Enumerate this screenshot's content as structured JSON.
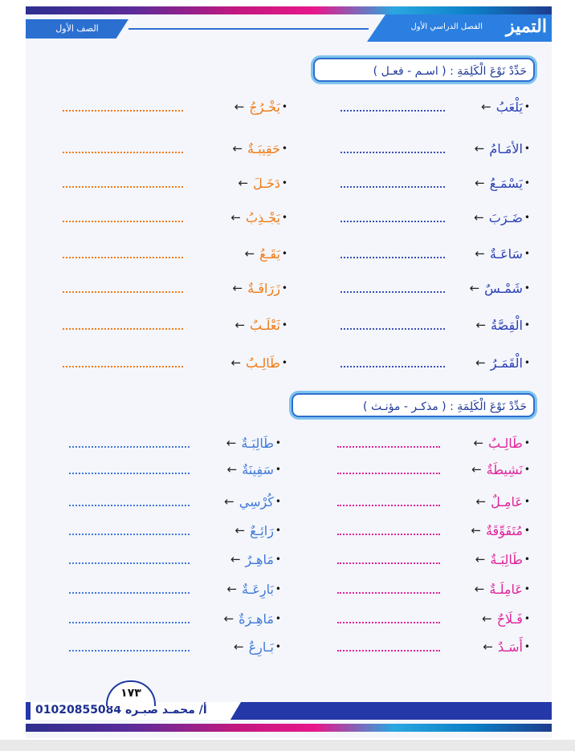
{
  "header": {
    "grade": "الصف الأول",
    "semester": "الفصل الدراسي الأول",
    "logo": "التميز"
  },
  "section1": {
    "title": "حَدِّدْ نَوْعَ الْكَلِمَةِ : ( اسـم - فعـل )",
    "right_words": [
      "يَلْعَبُ",
      "الأمَـامُ",
      "يَسْمَـعُ",
      "ضَـرَبَ",
      "سَاعَـةٌ",
      "شَمْـسٌ",
      "الْقِصَّةُ",
      "الْقَمَـرُ"
    ],
    "left_words": [
      "يَخْـرُجُ",
      "حَقِيبَـةٌ",
      "دَخَـلَ",
      "يَجْـذِبُ",
      "يَقَـعُ",
      "زَرَافَـةٌ",
      "ثَعْلَـبٌ",
      "طَالِـبٌ"
    ],
    "right_color": "#2a3fb5",
    "left_color": "#f07a14",
    "dots_color": "#f07a14"
  },
  "section2": {
    "title": "حَدِّدْ نَوْعَ الْكَلِمَةِ : ( مذكـر - مؤنـث )",
    "right_words": [
      "طَالِـبٌ",
      "نَشِيطَةٌ",
      "عَامِـلٌ",
      "مُتَفَوِّقَةٌ",
      "طَالِبَـةٌ",
      "عَامِلَـةٌ",
      "فَـلَاحٌ",
      "أَسَـدٌ"
    ],
    "left_words": [
      "طَالِبَـةٌ",
      "سَفِينَةٌ",
      "كُرْسِي",
      "رَائِـعٌ",
      "مَاهِـرٌ",
      "بَارِعَـةٌ",
      "مَاهِـرَةٌ",
      "بَـارِعٌ"
    ],
    "right_color": "#e0219a",
    "left_color": "#3f78d8",
    "dots_right_color": "#e0219a",
    "dots_left_color": "#3f78d8"
  },
  "arrow": "←",
  "bullet": "•",
  "footer": {
    "author": "أ/ محمـد صبـره 01020855084",
    "page_number": "١٧٣"
  }
}
